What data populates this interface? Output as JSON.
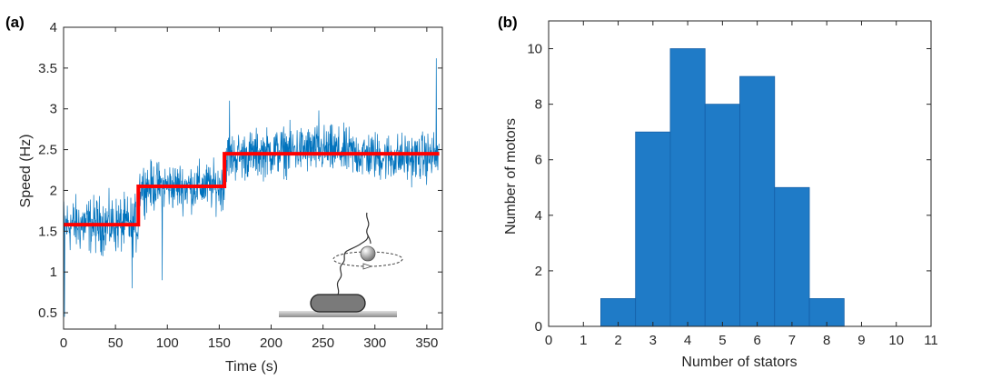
{
  "panels": {
    "a": "(a)",
    "b": "(b)"
  },
  "colors": {
    "trace": "#0072BD",
    "fit": "#FF0000",
    "bar": "#1F7BC7",
    "bar_edge": "#1560A8",
    "axis": "#262626"
  },
  "chart_data": [
    {
      "type": "line",
      "xlabel": "Time (s)",
      "ylabel": "Speed (Hz)",
      "xlim": [
        0,
        365
      ],
      "ylim": [
        0.3,
        4
      ],
      "xticks": [
        0,
        50,
        100,
        150,
        200,
        250,
        300,
        350
      ],
      "yticks": [
        0.5,
        1,
        1.5,
        2,
        2.5,
        3,
        3.5,
        4
      ],
      "grid": false,
      "series": [
        {
          "kind": "noisy-trace",
          "segments": [
            {
              "x": [
                0,
                72
              ],
              "mean": 1.58,
              "spread": 0.28
            },
            {
              "x": [
                72,
                155
              ],
              "mean": 2.05,
              "spread": 0.24
            },
            {
              "x": [
                155,
                362
              ],
              "mean": 2.45,
              "spread": 0.24
            }
          ],
          "spikes": [
            [
              1,
              0.45
            ],
            [
              95,
              0.9
            ],
            [
              359,
              3.62
            ],
            [
              160,
              3.1
            ],
            [
              66,
              0.8
            ],
            [
              246,
              2.98
            ]
          ]
        },
        {
          "kind": "step-fit",
          "x": [
            0,
            72,
            72,
            155,
            155,
            362
          ],
          "y": [
            1.58,
            1.58,
            2.05,
            2.05,
            2.45,
            2.45
          ]
        }
      ],
      "inset": "rotating bead tethered on a cell attached to a surface"
    },
    {
      "type": "bar",
      "xlabel": "Number of stators",
      "ylabel": "Number of motors",
      "xlim": [
        0,
        11
      ],
      "ylim": [
        0,
        11
      ],
      "xticks": [
        0,
        1,
        2,
        3,
        4,
        5,
        6,
        7,
        8,
        9,
        10,
        11
      ],
      "yticks": [
        0,
        2,
        4,
        6,
        8,
        10
      ],
      "categories": [
        2,
        3,
        4,
        5,
        6,
        7,
        8
      ],
      "values": [
        1,
        7,
        10,
        8,
        9,
        5,
        1
      ],
      "bin_width": 1,
      "grid": false
    }
  ]
}
